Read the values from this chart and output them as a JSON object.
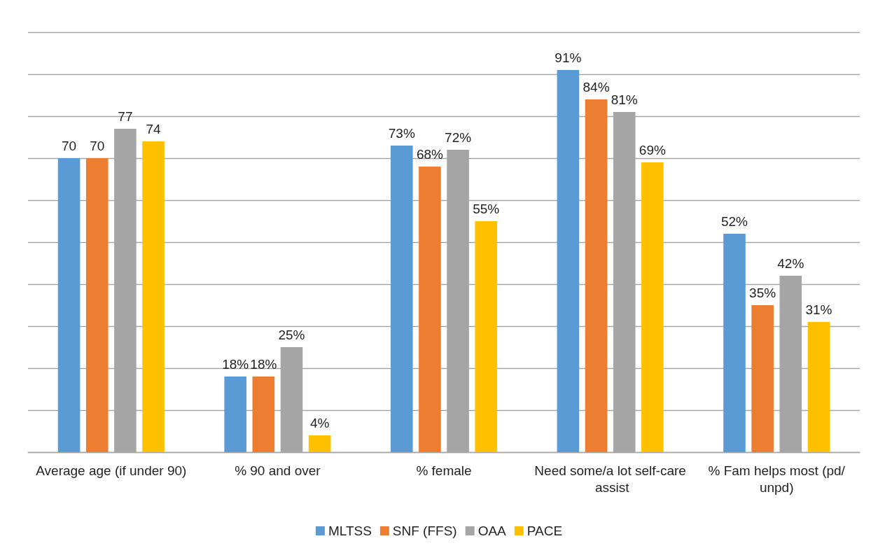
{
  "chart_data": {
    "type": "bar",
    "categories": [
      "Average age (if under 90)",
      "% 90 and over",
      "% female",
      "Need some/a lot self-care assist",
      "% Fam helps most (pd/unpd)"
    ],
    "series": [
      {
        "name": "MLTSS",
        "color": "#5b9bd5",
        "values": [
          70,
          18,
          73,
          91,
          52
        ],
        "value_labels": [
          "70",
          "18%",
          "73%",
          "91%",
          "52%"
        ]
      },
      {
        "name": "SNF (FFS)",
        "color": "#ed7d31",
        "values": [
          70,
          18,
          68,
          84,
          35
        ],
        "value_labels": [
          "70",
          "18%",
          "68%",
          "84%",
          "35%"
        ]
      },
      {
        "name": "OAA",
        "color": "#a5a5a5",
        "values": [
          77,
          25,
          72,
          81,
          42
        ],
        "value_labels": [
          "77",
          "25%",
          "72%",
          "81%",
          "42%"
        ]
      },
      {
        "name": "PACE",
        "color": "#ffc000",
        "values": [
          74,
          4,
          55,
          69,
          31
        ],
        "value_labels": [
          "74",
          "4%",
          "55%",
          "69%",
          "31%"
        ]
      }
    ],
    "ylim": [
      0,
      100
    ],
    "yticks": [
      {
        "value": 0,
        "label": null
      },
      {
        "value": 10,
        "label": null
      },
      {
        "value": 20,
        "label": null
      },
      {
        "value": 30,
        "label": null
      },
      {
        "value": 40,
        "label": null
      },
      {
        "value": 50,
        "label": null
      },
      {
        "value": 60,
        "label": null
      },
      {
        "value": 70,
        "label": null
      },
      {
        "value": 80,
        "label": null
      },
      {
        "value": 90,
        "label": null
      },
      {
        "value": 100,
        "label": null
      }
    ],
    "grid": "y",
    "legend": "bottom",
    "tick_labels": "x"
  }
}
